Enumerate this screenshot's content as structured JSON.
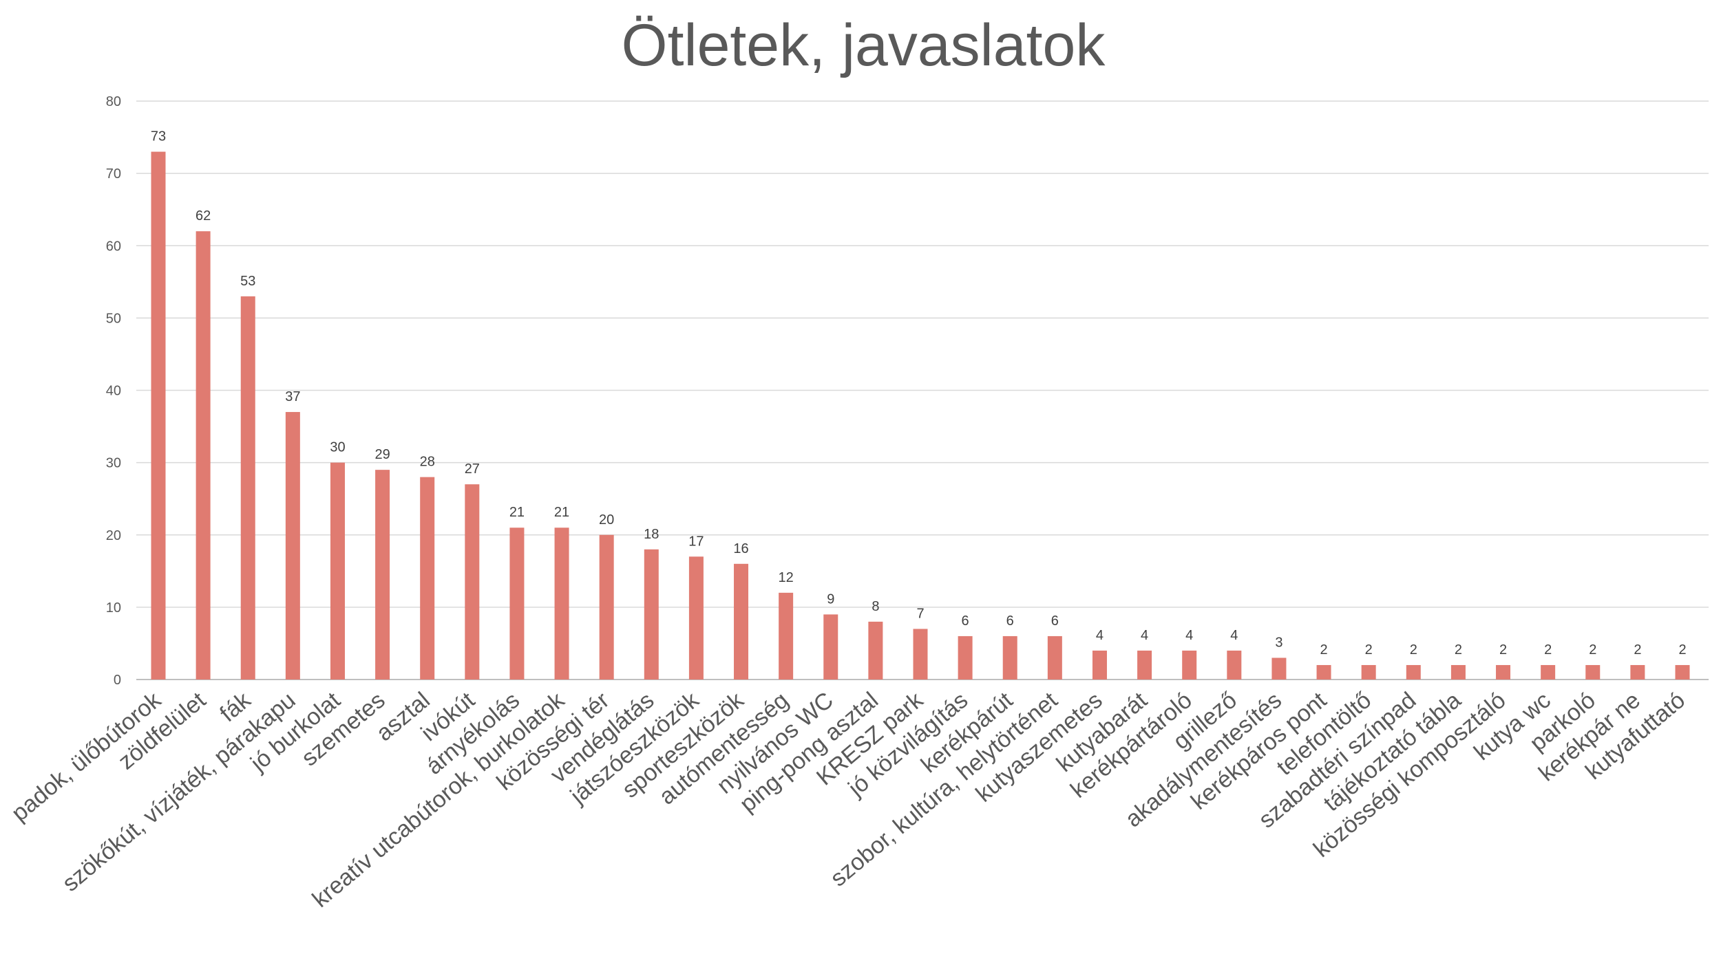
{
  "chart_data": {
    "type": "bar",
    "title": "Ötletek, javaslatok",
    "xlabel": "",
    "ylabel": "",
    "ylim": [
      0,
      80
    ],
    "yticks": [
      0,
      10,
      20,
      30,
      40,
      50,
      60,
      70,
      80
    ],
    "grid": true,
    "legend": "none",
    "bar_color": "#e07b71",
    "categories": [
      "padok, ülőbútorok",
      "zöldfelület",
      "fák",
      "szökőkút, vízjáték, párakapu",
      "jó burkolat",
      "szemetes",
      "asztal",
      "ivókút",
      "árnyékolás",
      "kreatív utcabútorok, burkolatok",
      "közösségi tér",
      "vendéglátás",
      "játszóeszközök",
      "sporteszközök",
      "autómentesség",
      "nyilvános WC",
      "ping-pong asztal",
      "KRESZ park",
      "jó közvilágítás",
      "kerékpárút",
      "szobor, kultúra, helytörténet",
      "kutyaszemetes",
      "kutyabarát",
      "kerékpártároló",
      "grillező",
      "akadálymentesítés",
      "kerékpáros pont",
      "telefontöltő",
      "szabadtéri színpad",
      "tájékoztató tábla",
      "közösségi komposztáló",
      "kutya wc",
      "parkoló",
      "kerékpár ne",
      "kutyafuttató"
    ],
    "values": [
      73,
      62,
      53,
      37,
      30,
      29,
      28,
      27,
      21,
      21,
      20,
      18,
      17,
      16,
      12,
      9,
      8,
      7,
      6,
      6,
      6,
      4,
      4,
      4,
      4,
      3,
      2,
      2,
      2,
      2,
      2,
      2,
      2,
      2,
      2
    ]
  }
}
